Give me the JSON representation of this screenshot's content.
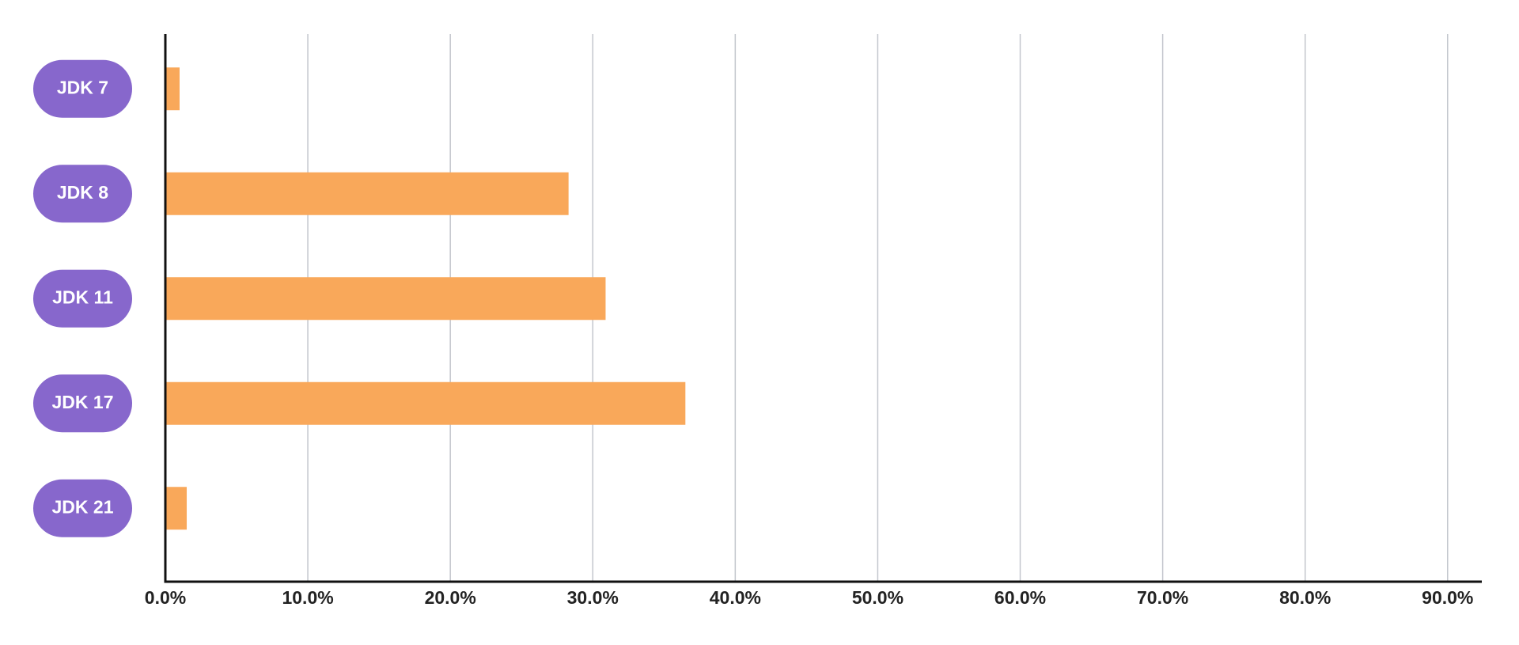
{
  "chart_data": {
    "type": "bar",
    "orientation": "horizontal",
    "categories": [
      "JDK 7",
      "JDK 8",
      "JDK 11",
      "JDK 17",
      "JDK 21"
    ],
    "values": [
      1.0,
      28.3,
      30.9,
      36.5,
      1.5
    ],
    "color": "#f9a85a",
    "label_color": "#8767cc",
    "xlim": [
      0,
      92.4
    ],
    "xticks": [
      {
        "value": 0,
        "label": "0.0%"
      },
      {
        "value": 10,
        "label": "10.0%"
      },
      {
        "value": 20,
        "label": "20.0%"
      },
      {
        "value": 30,
        "label": "30.0%"
      },
      {
        "value": 40,
        "label": "40.0%"
      },
      {
        "value": 50,
        "label": "50.0%"
      },
      {
        "value": 60,
        "label": "60.0%"
      },
      {
        "value": 70,
        "label": "70.0%"
      },
      {
        "value": 80,
        "label": "80.0%"
      },
      {
        "value": 90,
        "label": "90.0%"
      }
    ],
    "grid": true
  }
}
